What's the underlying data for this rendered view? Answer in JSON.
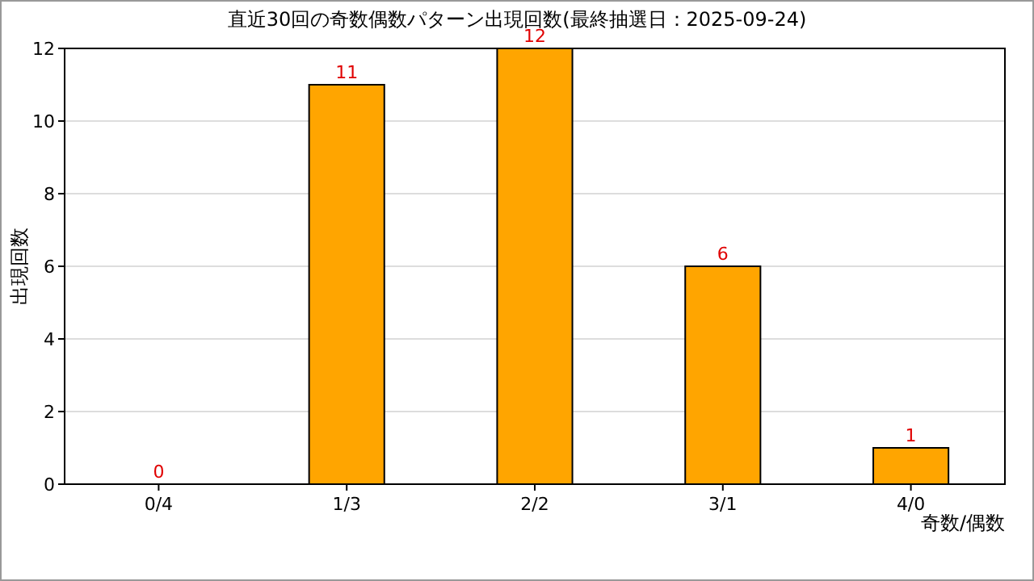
{
  "chart_data": {
    "type": "bar",
    "title": "直近30回の奇数偶数パターン出現回数(最終抽選日：2025-09-24)",
    "xlabel": "奇数/偶数",
    "ylabel": "出現回数",
    "categories": [
      "0/4",
      "1/3",
      "2/2",
      "3/1",
      "4/0"
    ],
    "values": [
      0,
      11,
      12,
      6,
      1
    ],
    "color": "#ffa500",
    "ylim": [
      0,
      12
    ],
    "yticks": [
      0,
      2,
      4,
      6,
      8,
      10,
      12
    ],
    "grid": "y",
    "data_labels": true
  }
}
